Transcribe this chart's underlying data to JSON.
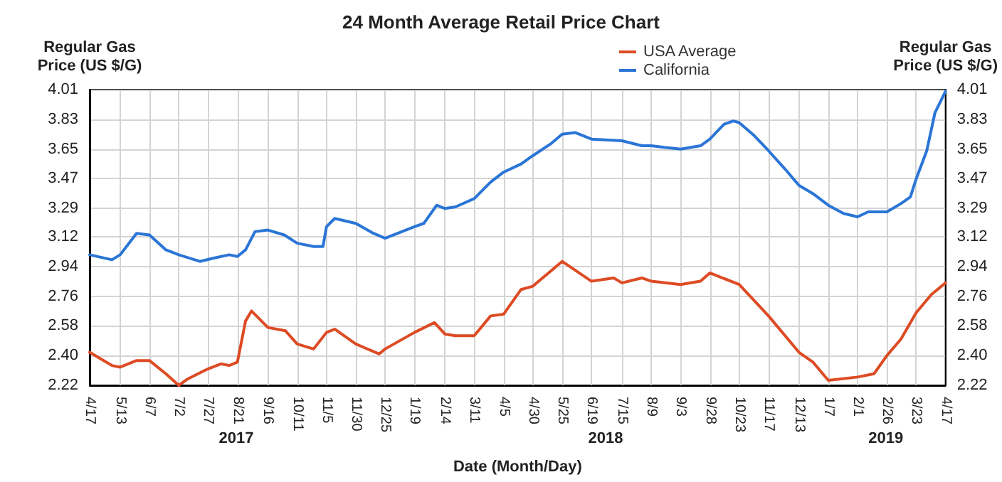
{
  "chart_data": {
    "type": "line",
    "title": "24 Month Average Retail Price Chart",
    "xlabel": "Date (Month/Day)",
    "ylabel": "Regular Gas Price (US $/G)",
    "y2label": "Regular Gas Price (US $/G)",
    "series": [
      {
        "name": "USA Average",
        "color": "#dd4b24",
        "x": [
          "2017-04-17",
          "2017-05-06",
          "2017-05-13",
          "2017-05-27",
          "2017-06-07",
          "2017-06-21",
          "2017-07-02",
          "2017-07-10",
          "2017-07-27",
          "2017-08-07",
          "2017-08-14",
          "2017-08-21",
          "2017-08-28",
          "2017-09-02",
          "2017-09-16",
          "2017-10-01",
          "2017-10-11",
          "2017-10-25",
          "2017-11-05",
          "2017-11-12",
          "2017-11-30",
          "2017-12-20",
          "2017-12-25",
          "2018-01-19",
          "2018-02-05",
          "2018-02-14",
          "2018-02-23",
          "2018-03-11",
          "2018-03-25",
          "2018-04-05",
          "2018-04-20",
          "2018-04-30",
          "2018-05-25",
          "2018-06-19",
          "2018-07-08",
          "2018-07-15",
          "2018-08-01",
          "2018-08-09",
          "2018-09-03",
          "2018-09-20",
          "2018-09-28",
          "2018-10-23",
          "2018-11-17",
          "2018-12-13",
          "2018-12-25",
          "2019-01-07",
          "2019-02-01",
          "2019-02-15",
          "2019-02-26",
          "2019-03-10",
          "2019-03-23",
          "2019-04-05",
          "2019-04-17"
        ],
        "values": [
          2.42,
          2.34,
          2.33,
          2.37,
          2.37,
          2.29,
          2.22,
          2.26,
          2.32,
          2.35,
          2.34,
          2.36,
          2.61,
          2.67,
          2.57,
          2.55,
          2.47,
          2.44,
          2.54,
          2.56,
          2.47,
          2.41,
          2.44,
          2.54,
          2.6,
          2.53,
          2.52,
          2.52,
          2.64,
          2.65,
          2.8,
          2.82,
          2.97,
          2.85,
          2.87,
          2.84,
          2.87,
          2.85,
          2.83,
          2.85,
          2.9,
          2.83,
          2.64,
          2.42,
          2.36,
          2.25,
          2.27,
          2.29,
          2.4,
          2.5,
          2.66,
          2.77,
          2.84
        ]
      },
      {
        "name": "California",
        "color": "#2a75d6",
        "x": [
          "2017-04-17",
          "2017-05-06",
          "2017-05-13",
          "2017-05-27",
          "2017-06-07",
          "2017-06-21",
          "2017-07-02",
          "2017-07-20",
          "2017-08-01",
          "2017-08-14",
          "2017-08-21",
          "2017-08-28",
          "2017-09-05",
          "2017-09-16",
          "2017-09-30",
          "2017-10-11",
          "2017-10-25",
          "2017-11-02",
          "2017-11-05",
          "2017-11-12",
          "2017-11-30",
          "2017-12-15",
          "2017-12-25",
          "2018-01-19",
          "2018-01-27",
          "2018-02-07",
          "2018-02-14",
          "2018-02-23",
          "2018-03-11",
          "2018-03-25",
          "2018-04-05",
          "2018-04-20",
          "2018-04-30",
          "2018-05-15",
          "2018-05-25",
          "2018-06-05",
          "2018-06-19",
          "2018-07-15",
          "2018-08-01",
          "2018-08-09",
          "2018-08-20",
          "2018-09-03",
          "2018-09-20",
          "2018-09-28",
          "2018-10-10",
          "2018-10-18",
          "2018-10-23",
          "2018-11-05",
          "2018-11-17",
          "2018-12-01",
          "2018-12-13",
          "2018-12-25",
          "2019-01-07",
          "2019-01-20",
          "2019-02-01",
          "2019-02-10",
          "2019-02-26",
          "2019-03-10",
          "2019-03-18",
          "2019-03-23",
          "2019-04-01",
          "2019-04-08",
          "2019-04-17"
        ],
        "values": [
          3.01,
          2.98,
          3.01,
          3.14,
          3.13,
          3.04,
          3.01,
          2.97,
          2.99,
          3.01,
          3.0,
          3.04,
          3.15,
          3.16,
          3.13,
          3.08,
          3.06,
          3.06,
          3.18,
          3.23,
          3.2,
          3.14,
          3.11,
          3.18,
          3.2,
          3.31,
          3.29,
          3.3,
          3.35,
          3.45,
          3.51,
          3.56,
          3.61,
          3.68,
          3.74,
          3.75,
          3.71,
          3.7,
          3.67,
          3.67,
          3.66,
          3.65,
          3.67,
          3.71,
          3.8,
          3.82,
          3.81,
          3.73,
          3.64,
          3.53,
          3.43,
          3.38,
          3.31,
          3.26,
          3.24,
          3.27,
          3.27,
          3.32,
          3.36,
          3.47,
          3.64,
          3.87,
          4.0
        ]
      }
    ],
    "xlim": [
      "2017-04-17",
      "2019-04-17"
    ],
    "xticks": [
      {
        "value": "2017-04-17",
        "label": "4/17"
      },
      {
        "value": "2017-05-13",
        "label": "5/13"
      },
      {
        "value": "2017-06-07",
        "label": "6/7"
      },
      {
        "value": "2017-07-02",
        "label": "7/2"
      },
      {
        "value": "2017-07-27",
        "label": "7/27"
      },
      {
        "value": "2017-08-21",
        "label": "8/21"
      },
      {
        "value": "2017-09-16",
        "label": "9/16"
      },
      {
        "value": "2017-10-11",
        "label": "10/11"
      },
      {
        "value": "2017-11-05",
        "label": "11/5"
      },
      {
        "value": "2017-11-30",
        "label": "11/30"
      },
      {
        "value": "2017-12-25",
        "label": "12/25"
      },
      {
        "value": "2018-01-19",
        "label": "1/19"
      },
      {
        "value": "2018-02-14",
        "label": "2/14"
      },
      {
        "value": "2018-03-11",
        "label": "3/11"
      },
      {
        "value": "2018-04-05",
        "label": "4/5"
      },
      {
        "value": "2018-04-30",
        "label": "4/30"
      },
      {
        "value": "2018-05-25",
        "label": "5/25"
      },
      {
        "value": "2018-06-19",
        "label": "6/19"
      },
      {
        "value": "2018-07-15",
        "label": "7/15"
      },
      {
        "value": "2018-08-09",
        "label": "8/9"
      },
      {
        "value": "2018-09-03",
        "label": "9/3"
      },
      {
        "value": "2018-09-28",
        "label": "9/28"
      },
      {
        "value": "2018-10-23",
        "label": "10/23"
      },
      {
        "value": "2018-11-17",
        "label": "11/17"
      },
      {
        "value": "2018-12-13",
        "label": "12/13"
      },
      {
        "value": "2019-01-07",
        "label": "1/7"
      },
      {
        "value": "2019-02-01",
        "label": "2/1"
      },
      {
        "value": "2019-02-26",
        "label": "2/26"
      },
      {
        "value": "2019-03-23",
        "label": "3/23"
      },
      {
        "value": "2019-04-17",
        "label": "4/17"
      }
    ],
    "ylim": [
      2.22,
      4.01
    ],
    "yticks": [
      2.22,
      {
        "value": 2.4,
        "label": "2.40"
      },
      2.58,
      2.76,
      2.94,
      3.12,
      3.29,
      3.47,
      3.65,
      3.83,
      4.01
    ],
    "y2lim": [
      2.22,
      4.01
    ],
    "y2ticks": [
      2.22,
      {
        "value": 2.4,
        "label": "2.40"
      },
      2.58,
      2.76,
      2.94,
      3.12,
      3.29,
      3.47,
      3.65,
      3.83,
      4.01
    ],
    "annotations": [
      "2017",
      "2018",
      "2019"
    ],
    "grid": true,
    "legend": "top right",
    "marker": "none",
    "line_style": "solid"
  }
}
